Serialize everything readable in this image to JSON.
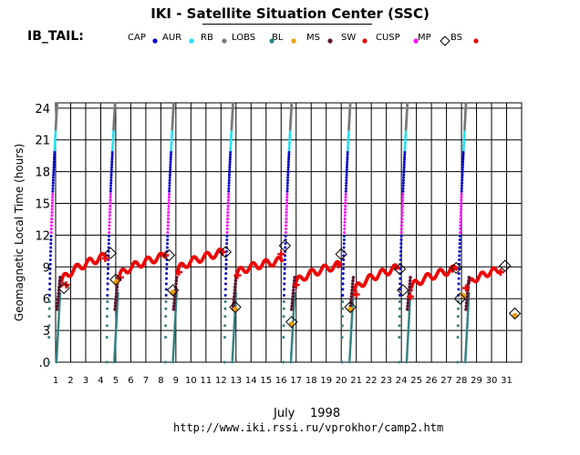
{
  "header": {
    "title": "IKI - Satellite Situation Center (SSC)",
    "satellite": "IB_TAIL:"
  },
  "legend": [
    {
      "label": "CAP",
      "color": "#0000cc"
    },
    {
      "label": "AUR",
      "color": "#22e0f0"
    },
    {
      "label": "RB",
      "color": "#777777"
    },
    {
      "label": "LOBS",
      "color": "#2f7f7f"
    },
    {
      "label": "BL",
      "color": "#f0a000"
    },
    {
      "label": "MS",
      "color": "#5a1530"
    },
    {
      "label": "SW",
      "color": "#ee0000"
    },
    {
      "label": "CUSP",
      "color": "#ff00ff"
    },
    {
      "label": "MP",
      "marker": "diamond",
      "color": "#000000"
    },
    {
      "label": "BS",
      "color": "#ee0000"
    }
  ],
  "footer": {
    "month": "July",
    "year": "1998",
    "url": "http://www.iki.rssi.ru/vprokhor/camp2.htm"
  },
  "chart_data": {
    "type": "scatter",
    "ylabel": "Geomagnetic Local Time (hours)",
    "xlabel": "",
    "xlim": [
      1,
      32
    ],
    "ylim": [
      0,
      24.5
    ],
    "y_ticks": [
      ".0",
      "3",
      "6",
      "9",
      "12",
      "15",
      "18",
      "21",
      "24"
    ],
    "x_ticks": [
      "1",
      "2",
      "3",
      "4",
      "5",
      "6",
      "7",
      "8",
      "9",
      "10",
      "11",
      "12",
      "13",
      "14",
      "15",
      "16",
      "17",
      "18",
      "19",
      "20",
      "21",
      "22",
      "23",
      "24",
      "25",
      "26",
      "27",
      "28",
      "29",
      "30",
      "31"
    ],
    "grid": true,
    "orbit_starts": [
      1.0,
      4.85,
      8.75,
      12.7,
      16.6,
      20.5,
      24.3,
      28.2
    ],
    "orbit_period_days": 3.9,
    "magnetopause_crossings": [
      {
        "day": 1.55,
        "mlt": 7.0
      },
      {
        "day": 4.65,
        "mlt": 10.3
      },
      {
        "day": 5.0,
        "mlt": 7.8
      },
      {
        "day": 8.55,
        "mlt": 10.1
      },
      {
        "day": 8.8,
        "mlt": 6.8
      },
      {
        "day": 12.3,
        "mlt": 10.4
      },
      {
        "day": 12.95,
        "mlt": 5.2
      },
      {
        "day": 16.25,
        "mlt": 11.0
      },
      {
        "day": 16.7,
        "mlt": 3.8
      },
      {
        "day": 20.0,
        "mlt": 10.2
      },
      {
        "day": 20.6,
        "mlt": 5.2
      },
      {
        "day": 23.9,
        "mlt": 8.8
      },
      {
        "day": 24.1,
        "mlt": 6.8
      },
      {
        "day": 27.65,
        "mlt": 8.9
      },
      {
        "day": 27.9,
        "mlt": 6.0
      },
      {
        "day": 30.9,
        "mlt": 9.1
      },
      {
        "day": 31.55,
        "mlt": 4.6
      }
    ],
    "bow_shock_crossings": [
      {
        "day": 1.7,
        "mlt": 7.3
      },
      {
        "day": 4.3,
        "mlt": 9.8
      },
      {
        "day": 5.3,
        "mlt": 8.0
      },
      {
        "day": 8.3,
        "mlt": 10.1
      },
      {
        "day": 9.2,
        "mlt": 8.5
      },
      {
        "day": 12.1,
        "mlt": 10.4
      },
      {
        "day": 13.1,
        "mlt": 8.2
      },
      {
        "day": 16.0,
        "mlt": 10.2
      },
      {
        "day": 17.0,
        "mlt": 7.3
      },
      {
        "day": 19.8,
        "mlt": 9.2
      },
      {
        "day": 21.0,
        "mlt": 6.4
      },
      {
        "day": 23.6,
        "mlt": 9.0
      },
      {
        "day": 24.6,
        "mlt": 6.2
      },
      {
        "day": 27.4,
        "mlt": 8.8
      },
      {
        "day": 28.3,
        "mlt": 7.0
      },
      {
        "day": 30.6,
        "mlt": 8.5
      }
    ]
  }
}
